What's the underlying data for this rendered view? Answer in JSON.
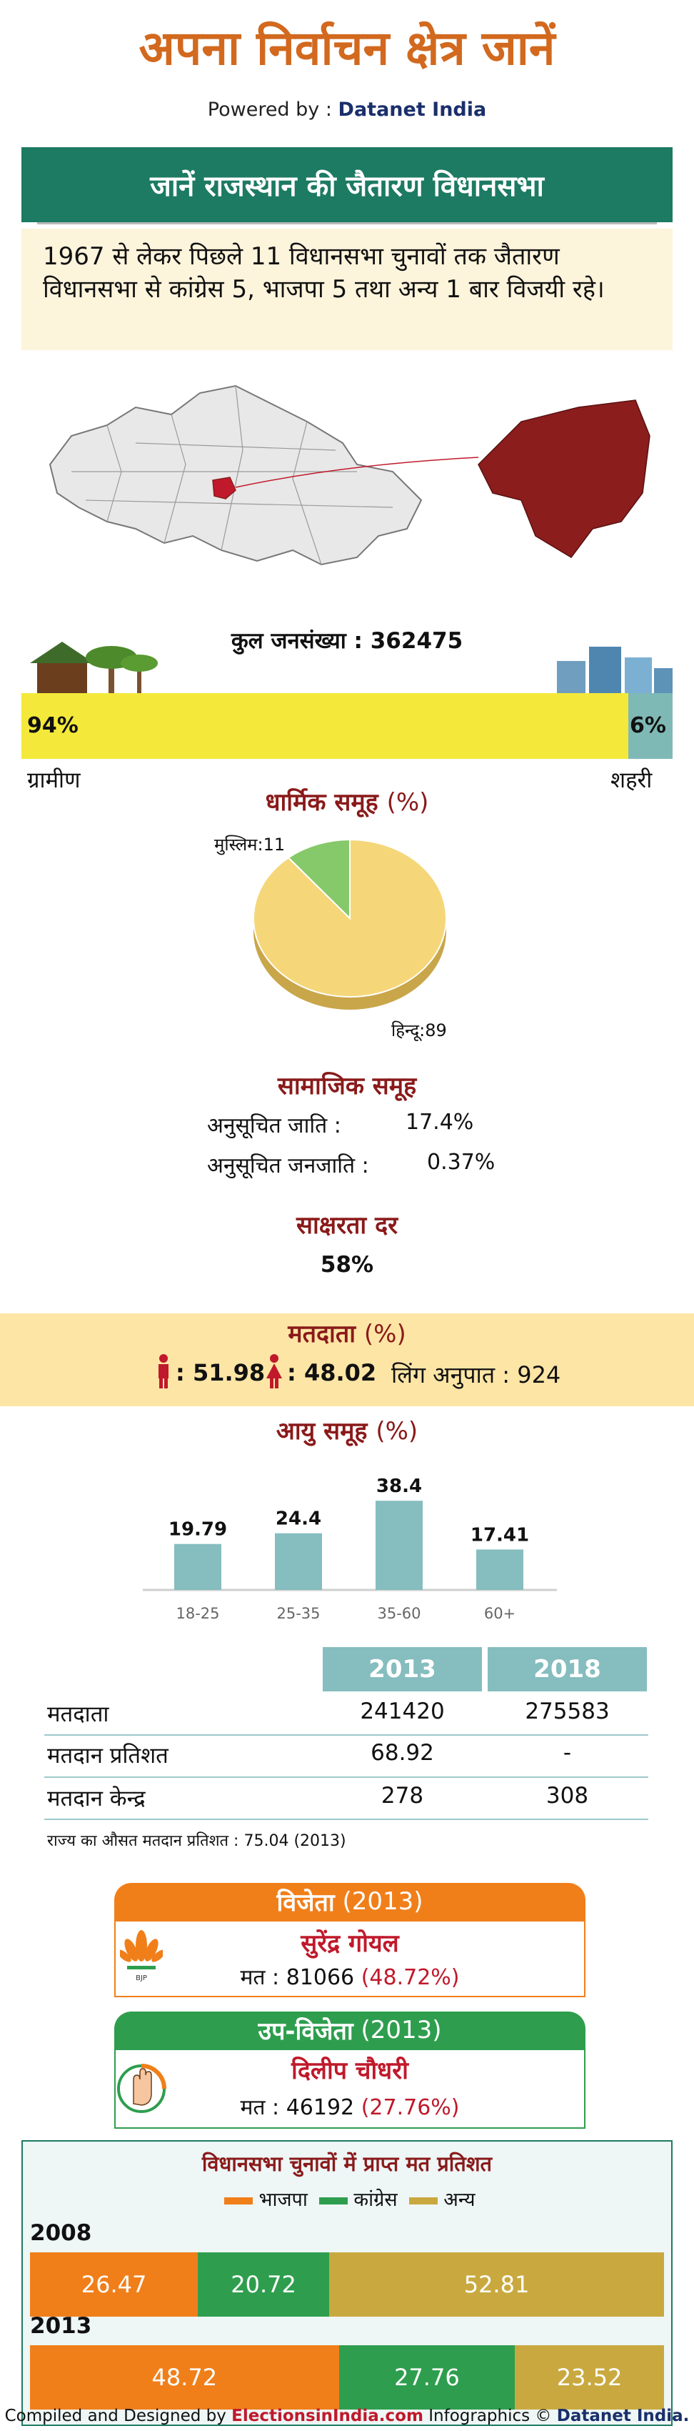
{
  "header": {
    "title": "अपना निर्वाचन क्षेत्र जानें",
    "powered_prefix": "Powered by : ",
    "powered_brand": "Datanet India"
  },
  "banner": {
    "title": "जानें राजस्थान की जैतारण विधानसभा"
  },
  "intro": {
    "text": "1967 से लेकर पिछले 11 विधानसभा चुनावों तक जैतारण विधानसभा से कांग्रेस 5, भाजपा 5 तथा अन्य 1 बार विजयी रहे।"
  },
  "colors": {
    "accent": "#1d7a63",
    "bjp": "#f07f1a",
    "congress": "#2e9e4e",
    "others": "#c9a93f",
    "teal": "#86bdbf",
    "pie_hindu": "#f5d77a",
    "pie_muslim": "#86c96a"
  },
  "population": {
    "label": "कुल जनसंख्या : 362475",
    "rural_pct": "94%",
    "urban_pct": "6%",
    "rural_label": "ग्रामीण",
    "urban_label": "शहरी"
  },
  "religion": {
    "title": "धार्मिक समूह",
    "unit": "(%)"
  },
  "social": {
    "title": "सामाजिक समूह",
    "sc_label": "अनुसूचित जाति :",
    "sc_value": "17.4%",
    "st_label": "अनुसूचित जनजाति :",
    "st_value": "0.37%"
  },
  "literacy": {
    "title": "साक्षरता दर",
    "value": "58%"
  },
  "voters": {
    "title": "मतदाता",
    "unit": "(%)",
    "male_value": ": 51.98",
    "female_value": ": 48.02",
    "sex_ratio": "लिंग अनुपात : 924"
  },
  "age": {
    "title": "आयु समूह",
    "unit": "(%)"
  },
  "table": {
    "years": [
      "2013",
      "2018"
    ],
    "rows": [
      {
        "label": "मतदाता",
        "v2013": "241420",
        "v2018": "275583"
      },
      {
        "label": "मतदान प्रतिशत",
        "v2013": "68.92",
        "v2018": "-"
      },
      {
        "label": "मतदान केन्द्र",
        "v2013": "278",
        "v2018": "308"
      }
    ],
    "note": "राज्य का औसत मतदान प्रतिशत : 75.04 (2013)"
  },
  "winner": {
    "tab": "विजेता",
    "year": "(2013)",
    "name": "सुरेंद्र गोयल",
    "votes": "मत : 81066",
    "pct": "(48.72%)",
    "party_icon": "lotus-icon"
  },
  "runner": {
    "tab": "उप-विजेता",
    "year": "(2013)",
    "name": "दिलीप चौधरी",
    "votes": "मत : 46192",
    "pct": "(27.76%)",
    "party_icon": "hand-icon"
  },
  "vote_share": {
    "title": "विधानसभा चुनावों में प्राप्त मत प्रतिशत",
    "legend": [
      "भाजपा",
      "कांग्रेस",
      "अन्य"
    ]
  },
  "footer": {
    "prefix": "Compiled and Designed by",
    "site": "ElectionsinIndia.com",
    "suffix": "Infographics ©",
    "brand": "Datanet India."
  },
  "chart_data": [
    {
      "type": "bar",
      "title": "",
      "categories": [
        "ग्रामीण",
        "शहरी"
      ],
      "values": [
        94,
        6
      ]
    },
    {
      "type": "pie",
      "title": "धार्मिक समूह (%)",
      "categories": [
        "हिन्दू",
        "मुस्लिम"
      ],
      "values": [
        89,
        11
      ],
      "labels": [
        "हिन्दू:89",
        "मुस्लिम:11"
      ]
    },
    {
      "type": "bar",
      "title": "आयु समूह (%)",
      "categories": [
        "18-25",
        "25-35",
        "35-60",
        "60+"
      ],
      "values": [
        19.79,
        24.4,
        38.4,
        17.41
      ],
      "ylim": [
        0,
        40
      ]
    },
    {
      "type": "bar",
      "title": "विधानसभा चुनावों में प्राप्त मत प्रतिशत",
      "categories": [
        "2008",
        "2013"
      ],
      "series": [
        {
          "name": "भाजपा",
          "values": [
            26.47,
            48.72
          ]
        },
        {
          "name": "कांग्रेस",
          "values": [
            20.72,
            27.76
          ]
        },
        {
          "name": "अन्य",
          "values": [
            52.81,
            23.52
          ]
        }
      ],
      "stacked": true
    }
  ]
}
